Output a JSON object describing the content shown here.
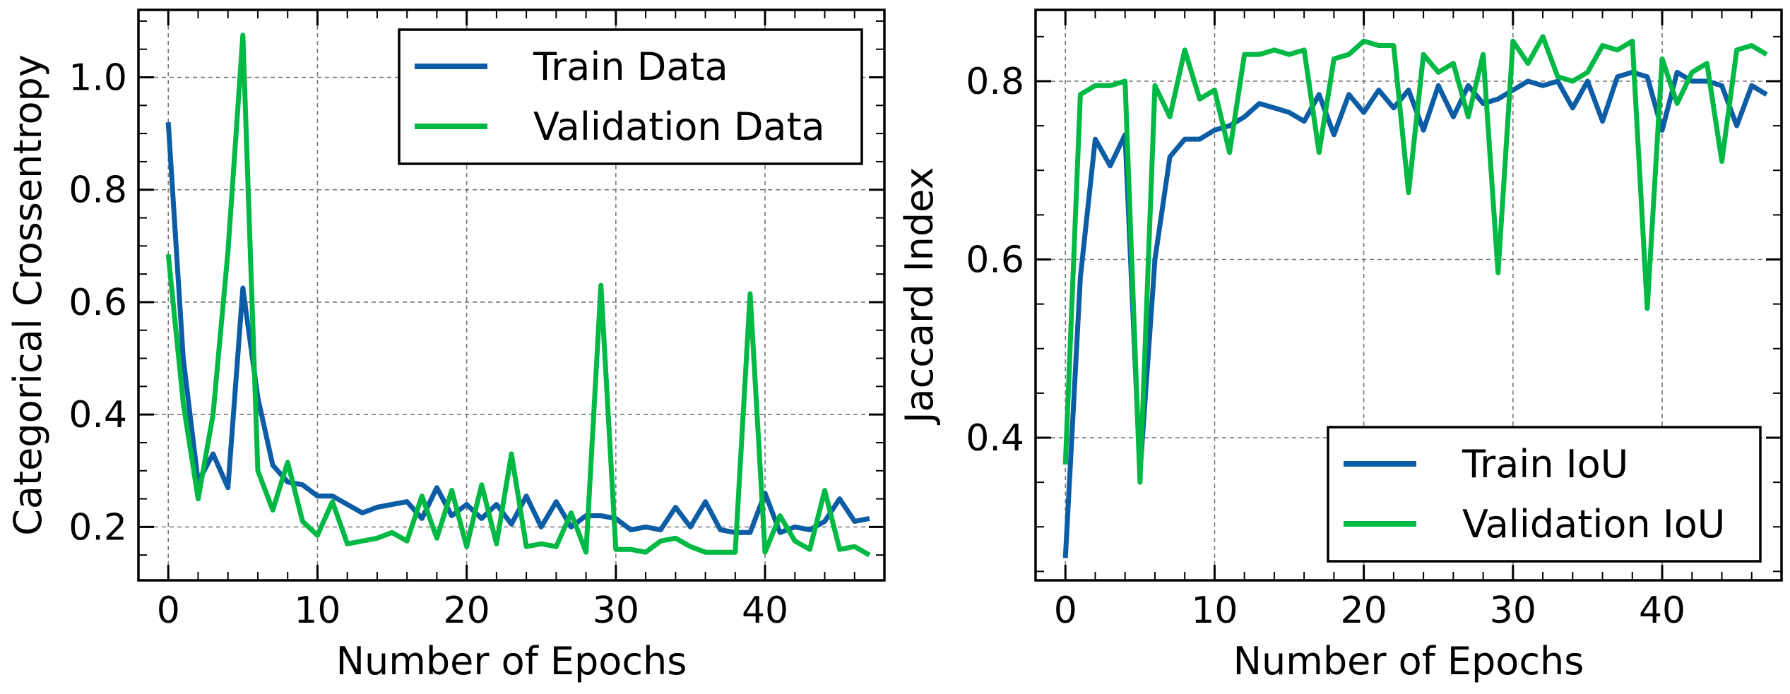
{
  "chart_data": [
    {
      "type": "line",
      "title": "",
      "xlabel": "Number of Epochs",
      "ylabel": "Categorical Crossentropy",
      "xlim": [
        -2,
        48
      ],
      "ylim": [
        0.105,
        1.12
      ],
      "xticks": [
        0,
        10,
        20,
        30,
        40
      ],
      "yticks": [
        0.2,
        0.4,
        0.6,
        0.8,
        1.0
      ],
      "ytick_labels": [
        "0.2",
        "0.4",
        "0.6",
        "0.8",
        "1.0"
      ],
      "grid": true,
      "legend_position": "top-right",
      "series": [
        {
          "name": "Train Data",
          "color": "#0c5da5",
          "x": [
            0,
            1,
            2,
            3,
            4,
            5,
            6,
            7,
            8,
            9,
            10,
            11,
            12,
            13,
            14,
            15,
            16,
            17,
            18,
            19,
            20,
            21,
            22,
            23,
            24,
            25,
            26,
            27,
            28,
            29,
            30,
            31,
            32,
            33,
            34,
            35,
            36,
            37,
            38,
            39,
            40,
            41,
            42,
            43,
            44,
            45,
            46,
            47
          ],
          "values": [
            0.92,
            0.5,
            0.28,
            0.33,
            0.27,
            0.625,
            0.43,
            0.31,
            0.28,
            0.275,
            0.255,
            0.255,
            0.24,
            0.225,
            0.235,
            0.24,
            0.245,
            0.215,
            0.27,
            0.22,
            0.24,
            0.215,
            0.24,
            0.205,
            0.255,
            0.2,
            0.245,
            0.2,
            0.22,
            0.22,
            0.215,
            0.195,
            0.2,
            0.195,
            0.235,
            0.2,
            0.245,
            0.195,
            0.19,
            0.19,
            0.26,
            0.19,
            0.2,
            0.195,
            0.21,
            0.25,
            0.21,
            0.215
          ]
        },
        {
          "name": "Validation Data",
          "color": "#00b945",
          "x": [
            0,
            1,
            2,
            3,
            4,
            5,
            6,
            7,
            8,
            9,
            10,
            11,
            12,
            13,
            14,
            15,
            16,
            17,
            18,
            19,
            20,
            21,
            22,
            23,
            24,
            25,
            26,
            27,
            28,
            29,
            30,
            31,
            32,
            33,
            34,
            35,
            36,
            37,
            38,
            39,
            40,
            41,
            42,
            43,
            44,
            45,
            46,
            47
          ],
          "values": [
            0.685,
            0.42,
            0.25,
            0.4,
            0.69,
            1.075,
            0.3,
            0.23,
            0.315,
            0.21,
            0.185,
            0.245,
            0.17,
            0.175,
            0.18,
            0.19,
            0.175,
            0.255,
            0.18,
            0.265,
            0.165,
            0.275,
            0.17,
            0.33,
            0.165,
            0.17,
            0.165,
            0.225,
            0.155,
            0.63,
            0.16,
            0.16,
            0.155,
            0.175,
            0.18,
            0.165,
            0.155,
            0.155,
            0.155,
            0.615,
            0.155,
            0.22,
            0.175,
            0.16,
            0.265,
            0.16,
            0.165,
            0.15
          ]
        }
      ]
    },
    {
      "type": "line",
      "title": "",
      "xlabel": "Number of Epochs",
      "ylabel": "Jaccard Index",
      "xlim": [
        -2,
        48
      ],
      "ylim": [
        0.24,
        0.88
      ],
      "xticks": [
        0,
        10,
        20,
        30,
        40
      ],
      "yticks": [
        0.4,
        0.6,
        0.8
      ],
      "ytick_labels": [
        "0.4",
        "0.6",
        "0.8"
      ],
      "grid": true,
      "legend_position": "bottom-right",
      "series": [
        {
          "name": "Train IoU",
          "color": "#0c5da5",
          "x": [
            0,
            1,
            2,
            3,
            4,
            5,
            6,
            7,
            8,
            9,
            10,
            11,
            12,
            13,
            14,
            15,
            16,
            17,
            18,
            19,
            20,
            21,
            22,
            23,
            24,
            25,
            26,
            27,
            28,
            29,
            30,
            31,
            32,
            33,
            34,
            35,
            36,
            37,
            38,
            39,
            40,
            41,
            42,
            43,
            44,
            45,
            46,
            47
          ],
          "values": [
            0.265,
            0.58,
            0.735,
            0.705,
            0.74,
            0.36,
            0.6,
            0.715,
            0.735,
            0.735,
            0.745,
            0.75,
            0.76,
            0.775,
            0.77,
            0.765,
            0.755,
            0.785,
            0.74,
            0.785,
            0.765,
            0.79,
            0.77,
            0.79,
            0.745,
            0.795,
            0.76,
            0.795,
            0.775,
            0.78,
            0.79,
            0.8,
            0.795,
            0.8,
            0.77,
            0.8,
            0.755,
            0.805,
            0.81,
            0.805,
            0.745,
            0.81,
            0.8,
            0.8,
            0.795,
            0.75,
            0.795,
            0.785
          ]
        },
        {
          "name": "Validation IoU",
          "color": "#00b945",
          "x": [
            0,
            1,
            2,
            3,
            4,
            5,
            6,
            7,
            8,
            9,
            10,
            11,
            12,
            13,
            14,
            15,
            16,
            17,
            18,
            19,
            20,
            21,
            22,
            23,
            24,
            25,
            26,
            27,
            28,
            29,
            30,
            31,
            32,
            33,
            34,
            35,
            36,
            37,
            38,
            39,
            40,
            41,
            42,
            43,
            44,
            45,
            46,
            47
          ],
          "values": [
            0.37,
            0.785,
            0.795,
            0.795,
            0.8,
            0.35,
            0.795,
            0.76,
            0.835,
            0.78,
            0.79,
            0.72,
            0.83,
            0.83,
            0.835,
            0.83,
            0.835,
            0.72,
            0.825,
            0.83,
            0.845,
            0.84,
            0.84,
            0.675,
            0.83,
            0.81,
            0.82,
            0.76,
            0.83,
            0.585,
            0.845,
            0.82,
            0.85,
            0.805,
            0.8,
            0.81,
            0.84,
            0.835,
            0.845,
            0.545,
            0.825,
            0.775,
            0.81,
            0.82,
            0.71,
            0.835,
            0.84,
            0.83
          ]
        }
      ]
    }
  ]
}
